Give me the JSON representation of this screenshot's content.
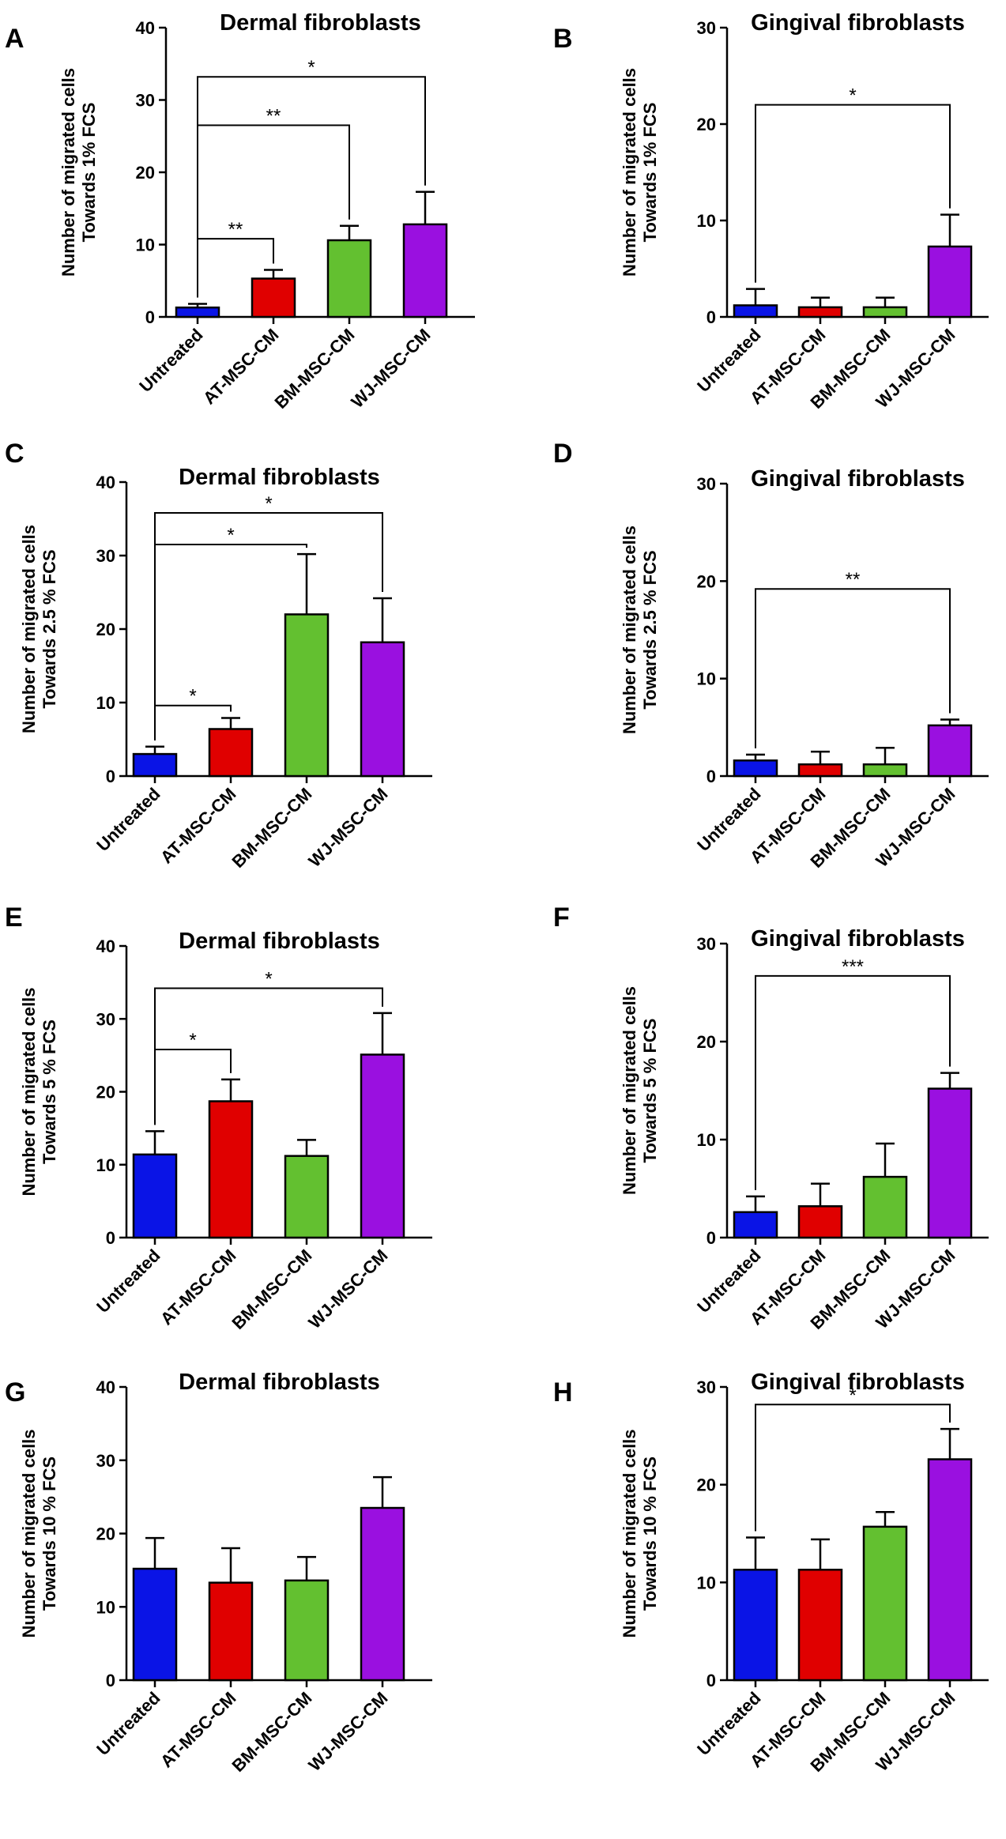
{
  "chart_data": [
    {
      "panel": "A",
      "type": "bar",
      "title": "Dermal fibroblasts",
      "ylabel": [
        "Number of migrated cells",
        "Towards 1% FCS"
      ],
      "categories": [
        "Untreated",
        "AT-MSC-CM",
        "BM-MSC-CM",
        "WJ-MSC-CM"
      ],
      "values": [
        1.3,
        5.3,
        10.6,
        12.8
      ],
      "errors": [
        0.5,
        1.2,
        2.0,
        4.5
      ],
      "colors": [
        "#0a14e6",
        "#e00000",
        "#63c030",
        "#9a10e0"
      ],
      "ylim": [
        0,
        40
      ],
      "yticks": [
        0,
        10,
        20,
        30,
        40
      ],
      "significance": [
        {
          "from": 0,
          "to": 1,
          "y": 10.8,
          "label": "**"
        },
        {
          "from": 0,
          "to": 2,
          "y": 26.5,
          "label": "**"
        },
        {
          "from": 0,
          "to": 3,
          "y": 33.2,
          "label": "*"
        }
      ]
    },
    {
      "panel": "B",
      "type": "bar",
      "title": "Gingival fibroblasts",
      "ylabel": [
        "Number of migrated cells",
        "Towards 1% FCS"
      ],
      "categories": [
        "Untreated",
        "AT-MSC-CM",
        "BM-MSC-CM",
        "WJ-MSC-CM"
      ],
      "values": [
        1.2,
        1.0,
        1.0,
        7.3
      ],
      "errors": [
        1.7,
        1.0,
        1.0,
        3.3
      ],
      "colors": [
        "#0a14e6",
        "#e00000",
        "#63c030",
        "#9a10e0"
      ],
      "ylim": [
        0,
        30
      ],
      "yticks": [
        0,
        10,
        20,
        30
      ],
      "significance": [
        {
          "from": 0,
          "to": 3,
          "y": 22,
          "label": "*"
        }
      ]
    },
    {
      "panel": "C",
      "type": "bar",
      "title": "Dermal fibroblasts",
      "ylabel": [
        "Number of migrated cells",
        "Towards 2.5 % FCS"
      ],
      "categories": [
        "Untreated",
        "AT-MSC-CM",
        "BM-MSC-CM",
        "WJ-MSC-CM"
      ],
      "values": [
        3.0,
        6.4,
        22.0,
        18.2
      ],
      "errors": [
        1.0,
        1.5,
        8.2,
        6.0
      ],
      "colors": [
        "#0a14e6",
        "#e00000",
        "#63c030",
        "#9a10e0"
      ],
      "ylim": [
        0,
        40
      ],
      "yticks": [
        0,
        10,
        20,
        30,
        40
      ],
      "significance": [
        {
          "from": 0,
          "to": 1,
          "y": 9.6,
          "label": "*"
        },
        {
          "from": 0,
          "to": 2,
          "y": 31.5,
          "label": "*"
        },
        {
          "from": 0,
          "to": 3,
          "y": 35.8,
          "label": "*"
        }
      ]
    },
    {
      "panel": "D",
      "type": "bar",
      "title": "Gingival fibroblasts",
      "ylabel": [
        "Number of migrated cells",
        "Towards 2.5 % FCS"
      ],
      "categories": [
        "Untreated",
        "AT-MSC-CM",
        "BM-MSC-CM",
        "WJ-MSC-CM"
      ],
      "values": [
        1.6,
        1.2,
        1.2,
        5.2
      ],
      "errors": [
        0.6,
        1.3,
        1.7,
        0.6
      ],
      "colors": [
        "#0a14e6",
        "#e00000",
        "#63c030",
        "#9a10e0"
      ],
      "ylim": [
        0,
        30
      ],
      "yticks": [
        0,
        10,
        20,
        30
      ],
      "significance": [
        {
          "from": 0,
          "to": 3,
          "y": 19.2,
          "label": "**"
        }
      ]
    },
    {
      "panel": "E",
      "type": "bar",
      "title": "Dermal fibroblasts",
      "ylabel": [
        "Number of migrated cells",
        "Towards 5 % FCS"
      ],
      "categories": [
        "Untreated",
        "AT-MSC-CM",
        "BM-MSC-CM",
        "WJ-MSC-CM"
      ],
      "values": [
        11.4,
        18.7,
        11.2,
        25.1
      ],
      "errors": [
        3.2,
        3.0,
        2.2,
        5.7
      ],
      "colors": [
        "#0a14e6",
        "#e00000",
        "#63c030",
        "#9a10e0"
      ],
      "ylim": [
        0,
        40
      ],
      "yticks": [
        0,
        10,
        20,
        30,
        40
      ],
      "significance": [
        {
          "from": 0,
          "to": 1,
          "y": 25.8,
          "label": "*"
        },
        {
          "from": 0,
          "to": 3,
          "y": 34.2,
          "label": "*"
        }
      ]
    },
    {
      "panel": "F",
      "type": "bar",
      "title": "Gingival fibroblasts",
      "ylabel": [
        "Number of migrated cells",
        "Towards 5 % FCS"
      ],
      "categories": [
        "Untreated",
        "AT-MSC-CM",
        "BM-MSC-CM",
        "WJ-MSC-CM"
      ],
      "values": [
        2.6,
        3.2,
        6.2,
        15.2
      ],
      "errors": [
        1.6,
        2.3,
        3.4,
        1.6
      ],
      "colors": [
        "#0a14e6",
        "#e00000",
        "#63c030",
        "#9a10e0"
      ],
      "ylim": [
        0,
        30
      ],
      "yticks": [
        0,
        10,
        20,
        30
      ],
      "significance": [
        {
          "from": 0,
          "to": 3,
          "y": 26.7,
          "label": "***"
        }
      ]
    },
    {
      "panel": "G",
      "type": "bar",
      "title": "Dermal fibroblasts",
      "ylabel": [
        "Number of migrated cells",
        "Towards 10 % FCS"
      ],
      "categories": [
        "Untreated",
        "AT-MSC-CM",
        "BM-MSC-CM",
        "WJ-MSC-CM"
      ],
      "values": [
        15.2,
        13.3,
        13.6,
        23.5
      ],
      "errors": [
        4.2,
        4.7,
        3.2,
        4.2
      ],
      "colors": [
        "#0a14e6",
        "#e00000",
        "#63c030",
        "#9a10e0"
      ],
      "ylim": [
        0,
        40
      ],
      "yticks": [
        0,
        10,
        20,
        30,
        40
      ],
      "significance": []
    },
    {
      "panel": "H",
      "type": "bar",
      "title": "Gingival fibroblasts",
      "ylabel": [
        "Number of migrated cells",
        "Towards 10 % FCS"
      ],
      "categories": [
        "Untreated",
        "AT-MSC-CM",
        "BM-MSC-CM",
        "WJ-MSC-CM"
      ],
      "values": [
        11.3,
        11.3,
        15.7,
        22.6
      ],
      "errors": [
        3.3,
        3.1,
        1.5,
        3.1
      ],
      "colors": [
        "#0a14e6",
        "#e00000",
        "#63c030",
        "#9a10e0"
      ],
      "ylim": [
        0,
        30
      ],
      "yticks": [
        0,
        10,
        20,
        30
      ],
      "significance": [
        {
          "from": 0,
          "to": 3,
          "y": 28.2,
          "label": "*"
        }
      ]
    }
  ]
}
